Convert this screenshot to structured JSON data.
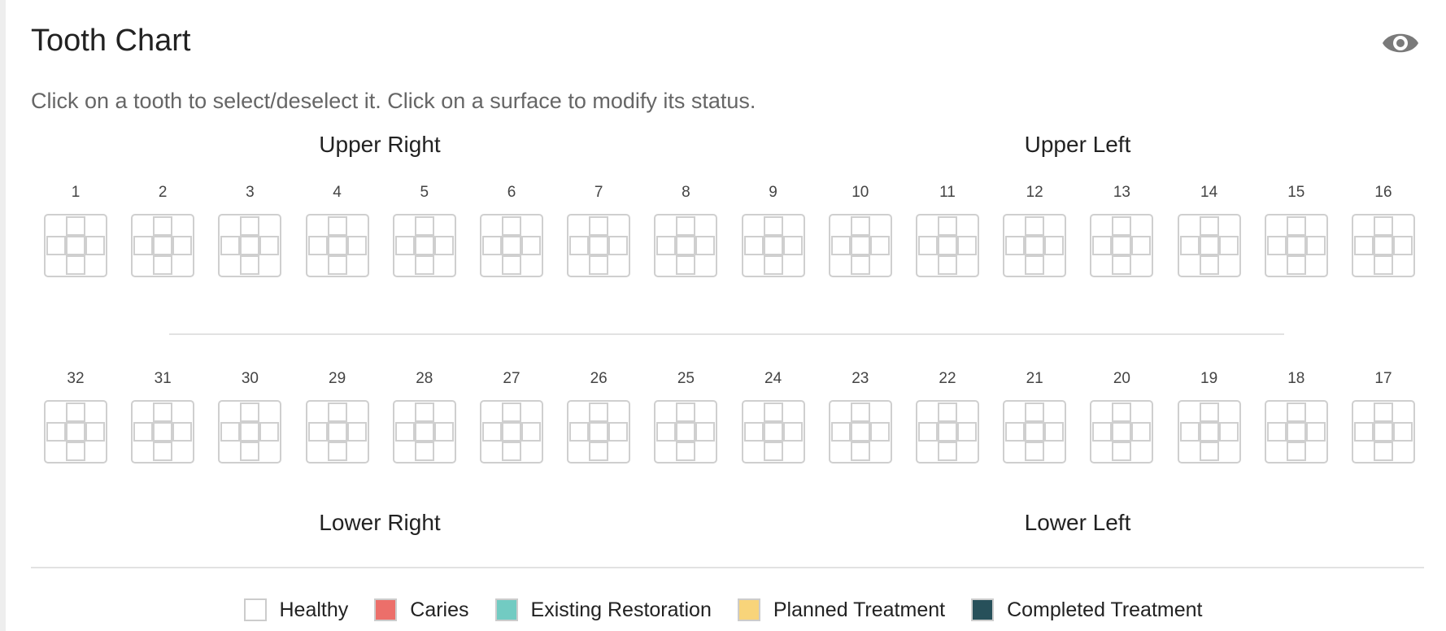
{
  "header": {
    "title": "Tooth Chart",
    "toggle_icon": "eye-icon",
    "subtitle": "Click on a tooth to select/deselect it. Click on a surface to modify its status."
  },
  "quadrants": {
    "upper_right": "Upper Right",
    "upper_left": "Upper Left",
    "lower_right": "Lower Right",
    "lower_left": "Lower Left"
  },
  "upper_teeth": [
    "1",
    "2",
    "3",
    "4",
    "5",
    "6",
    "7",
    "8",
    "9",
    "10",
    "11",
    "12",
    "13",
    "14",
    "15",
    "16"
  ],
  "lower_teeth": [
    "32",
    "31",
    "30",
    "29",
    "28",
    "27",
    "26",
    "25",
    "24",
    "23",
    "22",
    "21",
    "20",
    "19",
    "18",
    "17"
  ],
  "legend": [
    {
      "label": "Healthy",
      "color": "#ffffff"
    },
    {
      "label": "Caries",
      "color": "#ec6f6a"
    },
    {
      "label": "Existing Restoration",
      "color": "#72cbc2"
    },
    {
      "label": "Planned Treatment",
      "color": "#f8d47a"
    },
    {
      "label": "Completed Treatment",
      "color": "#27505a"
    }
  ]
}
